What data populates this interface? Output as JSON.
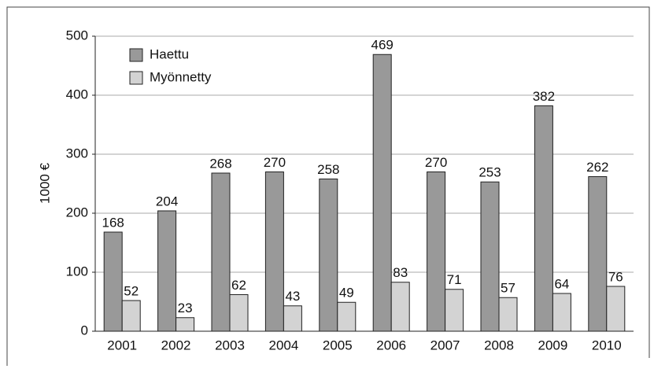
{
  "chart_data": {
    "type": "bar",
    "y_label": "1000 €",
    "categories": [
      "2001",
      "2002",
      "2003",
      "2004",
      "2005",
      "2006",
      "2007",
      "2008",
      "2009",
      "2010"
    ],
    "series": [
      {
        "name": "Haettu",
        "color": "#999999",
        "values": [
          168,
          204,
          268,
          270,
          258,
          469,
          270,
          253,
          382,
          262
        ]
      },
      {
        "name": "Myönnetty",
        "color": "#d3d3d3",
        "values": [
          52,
          23,
          62,
          43,
          49,
          83,
          71,
          57,
          64,
          76
        ]
      }
    ],
    "ylim": [
      0,
      500
    ],
    "yticks": [
      0,
      100,
      200,
      300,
      400,
      500
    ],
    "grid": true,
    "legend": "upper left"
  }
}
